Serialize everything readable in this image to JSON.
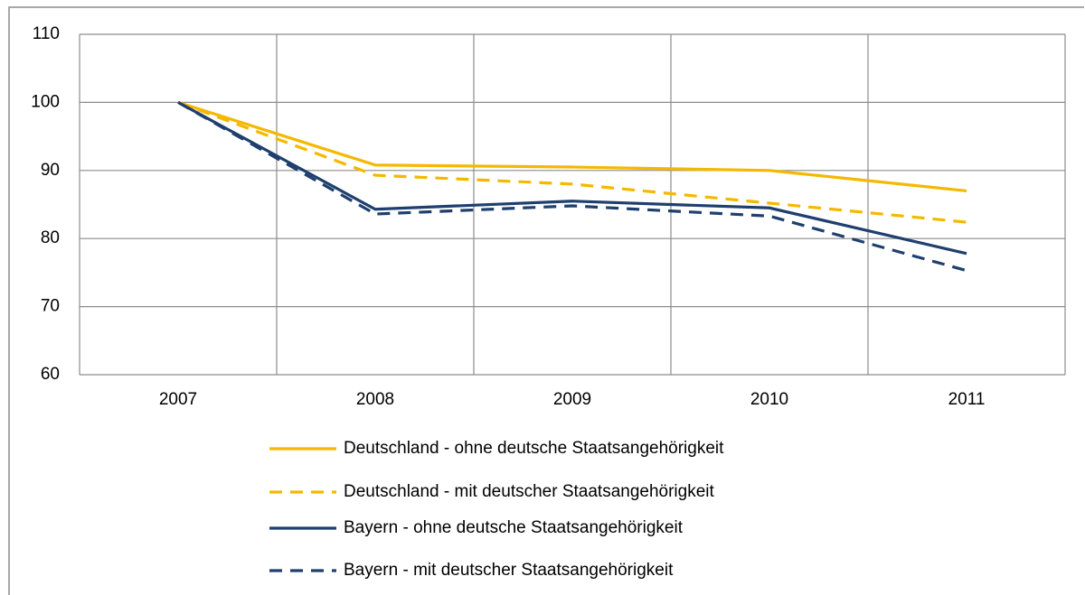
{
  "chart_data": {
    "type": "line",
    "categories": [
      "2007",
      "2008",
      "2009",
      "2010",
      "2011"
    ],
    "series": [
      {
        "name": "Deutschland - ohne deutsche Staatsangehörigkeit",
        "color": "#f5b800",
        "dashed": false,
        "values": [
          100,
          90.8,
          90.5,
          90,
          87
        ]
      },
      {
        "name": "Deutschland - mit deutscher Staatsangehörigkeit",
        "color": "#f5b800",
        "dashed": true,
        "values": [
          100,
          89.3,
          88,
          85.2,
          82.4
        ]
      },
      {
        "name": "Bayern - ohne deutsche Staatsangehörigkeit",
        "color": "#1f3f6e",
        "dashed": false,
        "values": [
          100,
          84.3,
          85.5,
          84.5,
          77.8
        ]
      },
      {
        "name": "Bayern - mit deutscher Staatsangehörigkeit",
        "color": "#1f3f6e",
        "dashed": true,
        "values": [
          100,
          83.6,
          84.8,
          83.3,
          75.3
        ]
      }
    ],
    "ylim": [
      60,
      110
    ],
    "yticks": [
      60,
      70,
      80,
      90,
      100,
      110
    ],
    "grid": true,
    "legend": "bottom"
  }
}
